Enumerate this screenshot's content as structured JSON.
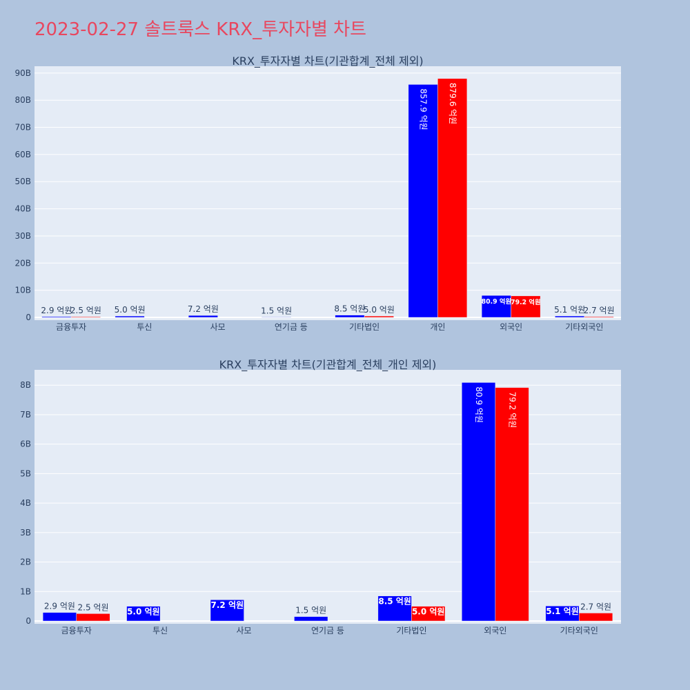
{
  "title": "2023-02-27 솔트룩스 KRX_투자자별 차트",
  "colors": {
    "background": "#b0c4de",
    "plot_bg": "#e5ecf6",
    "series_a": "#0000ff",
    "series_b": "#ff0000",
    "title": "#e8475f",
    "text": "#2a3f5f"
  },
  "chart_data": [
    {
      "type": "bar",
      "title": "KRX_투자자별 차트(기관합계_전체 제외)",
      "categories": [
        "금융투자",
        "투신",
        "사모",
        "연기금 등",
        "기타법인",
        "개인",
        "외국인",
        "기타외국인"
      ],
      "series": [
        {
          "color": "#0000ff",
          "values": [
            290000000,
            500000000,
            720000000,
            150000000,
            850000000,
            85790000000,
            8090000000,
            510000000
          ],
          "labels": [
            "2.9 억원",
            "5.0 억원",
            "7.2 억원",
            "1.5 억원",
            "8.5 억원",
            "857.9 억원",
            "80.9 억원",
            "5.1 억원"
          ]
        },
        {
          "color": "#ff0000",
          "values": [
            250000000,
            0,
            0,
            0,
            500000000,
            87960000000,
            7920000000,
            270000000
          ],
          "labels": [
            "2.5 억원",
            "",
            "",
            "",
            "5.0 억원",
            "879.6 억원",
            "79.2 억원",
            "2.7 억원"
          ]
        }
      ],
      "yticks": [
        "0",
        "10B",
        "20B",
        "30B",
        "40B",
        "50B",
        "60B",
        "70B",
        "80B",
        "90B"
      ],
      "ytick_values": [
        0,
        10000000000,
        20000000000,
        30000000000,
        40000000000,
        50000000000,
        60000000000,
        70000000000,
        80000000000,
        90000000000
      ],
      "ylim": [
        0,
        92500000000
      ],
      "grid": true
    },
    {
      "type": "bar",
      "title": "KRX_투자자별 차트(기관합계_전체_개인 제외)",
      "categories": [
        "금융투자",
        "투신",
        "사모",
        "연기금 등",
        "기타법인",
        "외국인",
        "기타외국인"
      ],
      "series": [
        {
          "color": "#0000ff",
          "values": [
            290000000,
            500000000,
            720000000,
            150000000,
            850000000,
            8090000000,
            510000000
          ],
          "labels": [
            "2.9 억원",
            "5.0 억원",
            "7.2 억원",
            "1.5 억원",
            "8.5 억원",
            "80.9 억원",
            "5.1 억원"
          ]
        },
        {
          "color": "#ff0000",
          "values": [
            250000000,
            0,
            0,
            0,
            500000000,
            7920000000,
            270000000
          ],
          "labels": [
            "2.5 억원",
            "",
            "",
            "",
            "5.0 억원",
            "79.2 억원",
            "2.7 억원"
          ]
        }
      ],
      "yticks": [
        "0",
        "1B",
        "2B",
        "3B",
        "4B",
        "5B",
        "6B",
        "7B",
        "8B"
      ],
      "ytick_values": [
        0,
        1000000000,
        2000000000,
        3000000000,
        4000000000,
        5000000000,
        6000000000,
        7000000000,
        8000000000
      ],
      "ylim": [
        0,
        8520000000
      ],
      "grid": true
    }
  ]
}
